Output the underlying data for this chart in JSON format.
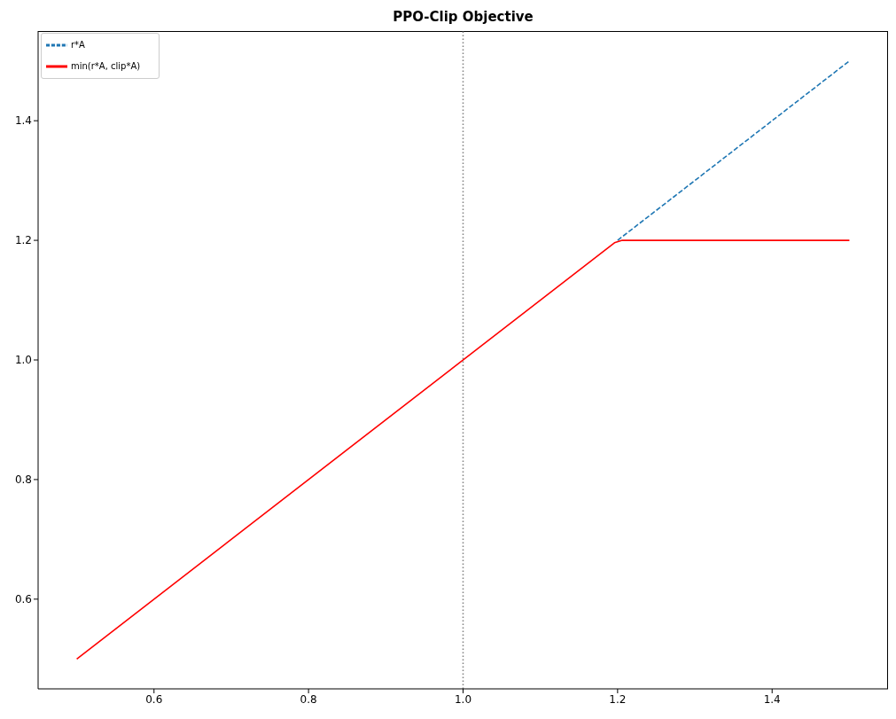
{
  "chart_data": {
    "type": "line",
    "title": "PPO-Clip Objective",
    "series": [
      {
        "name": "r*A",
        "color": "#1f77b4",
        "line_style": "dashed",
        "x": [
          1.2,
          1.5
        ],
        "values": [
          1.2,
          1.5
        ]
      },
      {
        "name": "min(r*A, clip*A)",
        "color": "#ff0000",
        "line_style": "solid",
        "x": [
          0.5,
          1.196,
          1.206,
          1.5
        ],
        "values": [
          0.5,
          1.196,
          1.2,
          1.2
        ]
      }
    ],
    "xlim": [
      0.45,
      1.55
    ],
    "xticks": [
      0.6,
      0.8,
      {
        "value": 1,
        "label": "1.0"
      },
      1.2,
      1.4
    ],
    "ylim": [
      0.45,
      1.55
    ],
    "yticks": [
      0.6,
      0.8,
      {
        "value": 1,
        "label": "1.0"
      },
      1.2,
      1.4
    ],
    "ref_lines": [
      {
        "axis": "x",
        "value": 1,
        "color": "#808080",
        "line_style": "dotted"
      }
    ],
    "legend": "top left"
  }
}
